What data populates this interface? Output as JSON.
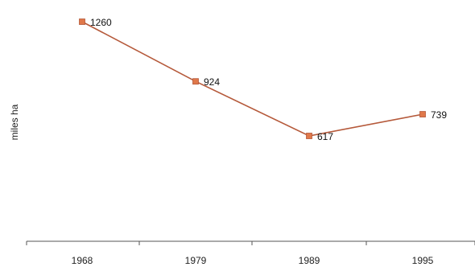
{
  "chart_data": {
    "type": "line",
    "ylabel": "miles ha",
    "categories": [
      "1968",
      "1979",
      "1989",
      "1995"
    ],
    "series": [
      {
        "values": [
          1260,
          924,
          617,
          739
        ],
        "color": "#b5593a",
        "marker_color": "#e0784a"
      }
    ],
    "data_labels": [
      "1260",
      "924",
      "617",
      "739"
    ],
    "ylim": [
      0,
      1380
    ],
    "grid": false,
    "legend": "none"
  }
}
